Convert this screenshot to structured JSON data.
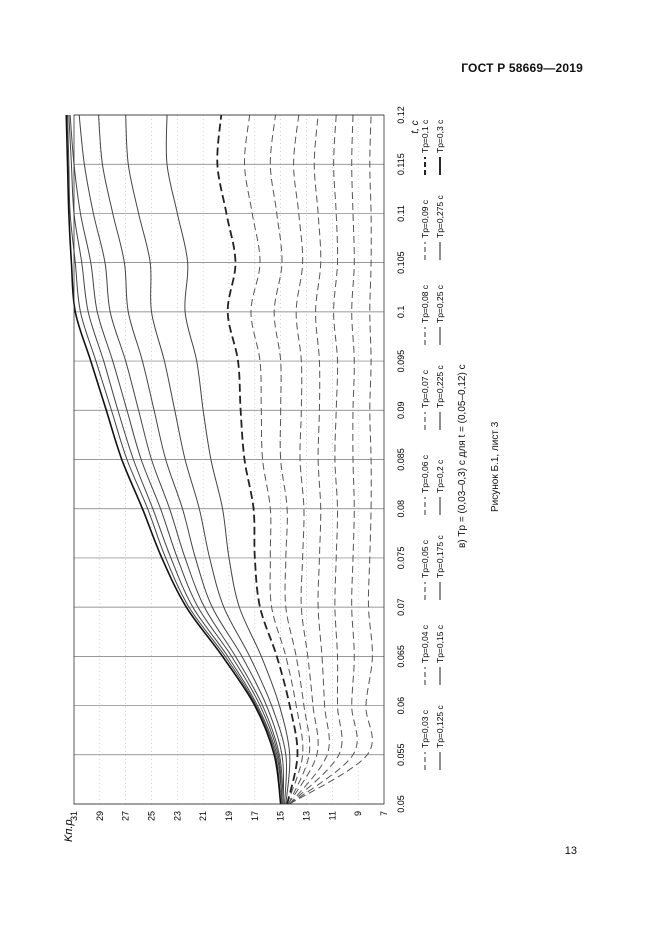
{
  "header": {
    "standard": "ГОСТ Р 58669—2019"
  },
  "page_number": "13",
  "figure": {
    "panel_caption": "в) Tр = (0,03–0,3) с для t = (0,05–0,12) с",
    "caption": "Рисунок Б.1, лист 3"
  },
  "chart_data": {
    "type": "line",
    "title": "",
    "xlabel": "t, с",
    "ylabel": "Kп.р",
    "xlim": [
      0.05,
      0.12
    ],
    "ylim": [
      7,
      31
    ],
    "x_ticks": [
      "0.05",
      "0.055",
      "0.06",
      "0.065",
      "0.07",
      "0.075",
      "0.08",
      "0.085",
      "0.09",
      "0.095",
      "0.1",
      "0.105",
      "0.11",
      "0.115",
      "0.12"
    ],
    "y_ticks": [
      "7",
      "9",
      "11",
      "13",
      "15",
      "17",
      "19",
      "21",
      "23",
      "25",
      "27",
      "29",
      "31"
    ],
    "grid": true,
    "x": [
      0.05,
      0.055,
      0.06,
      0.065,
      0.07,
      0.075,
      0.08,
      0.085,
      0.09,
      0.095,
      0.1,
      0.105,
      0.11,
      0.115,
      0.12
    ],
    "legend": [
      {
        "label": "Tр=0,03 с",
        "style": "dash"
      },
      {
        "label": "Tр=0,04 с",
        "style": "dash"
      },
      {
        "label": "Tр=0,05 с",
        "style": "dash"
      },
      {
        "label": "Tр=0,06 с",
        "style": "dash"
      },
      {
        "label": "Tр=0,07 с",
        "style": "dash"
      },
      {
        "label": "Tр=0,08 с",
        "style": "dash"
      },
      {
        "label": "Tр=0,09 с",
        "style": "dash"
      },
      {
        "label": "Tр=0,1 с",
        "style": "dash-bold"
      },
      {
        "label": "Tр=0,125 с",
        "style": "solid"
      },
      {
        "label": "Tр=0,15 с",
        "style": "solid"
      },
      {
        "label": "Tр=0,175 с",
        "style": "solid"
      },
      {
        "label": "Tр=0,2 с",
        "style": "solid"
      },
      {
        "label": "Tр=0,225 с",
        "style": "solid"
      },
      {
        "label": "Tр=0,25 с",
        "style": "solid"
      },
      {
        "label": "Tр=0,275 с",
        "style": "solid"
      },
      {
        "label": "Tр=0,3 с",
        "style": "solid-bold"
      }
    ],
    "series": [
      {
        "name": "Tр=0,03 с",
        "values": [
          14.3,
          8.3,
          8.4,
          7.9,
          8.2,
          8.1,
          8.0,
          8.0,
          8.1,
          8.0,
          8.1,
          8.0,
          8.0,
          8.1,
          8.0
        ]
      },
      {
        "name": "Tр=0,04 с",
        "values": [
          14.3,
          9.4,
          9.5,
          9.3,
          9.5,
          9.4,
          9.3,
          9.4,
          9.4,
          9.3,
          9.5,
          9.3,
          9.4,
          9.5,
          9.4
        ]
      },
      {
        "name": "Tр=0,05 с",
        "values": [
          14.3,
          10.5,
          10.6,
          10.6,
          10.8,
          10.7,
          10.6,
          10.8,
          10.7,
          10.6,
          10.9,
          10.6,
          10.7,
          10.9,
          10.7
        ]
      },
      {
        "name": "Tр=0,06 с",
        "values": [
          14.3,
          11.4,
          11.6,
          11.8,
          12.1,
          12.0,
          11.9,
          12.1,
          12.0,
          12.0,
          12.3,
          11.9,
          12.1,
          12.4,
          12.1
        ]
      },
      {
        "name": "Tр=0,07 с",
        "values": [
          14.4,
          12.2,
          12.5,
          12.9,
          13.4,
          13.3,
          13.2,
          13.5,
          13.4,
          13.4,
          13.8,
          13.3,
          13.6,
          14.0,
          13.6
        ]
      },
      {
        "name": "Tр=0,08 с",
        "values": [
          14.4,
          12.8,
          13.2,
          13.8,
          14.6,
          14.6,
          14.5,
          15.0,
          15.0,
          15.0,
          15.5,
          14.9,
          15.3,
          15.8,
          15.4
        ]
      },
      {
        "name": "Tр=0,09 с",
        "values": [
          14.5,
          13.3,
          13.8,
          14.6,
          15.7,
          15.8,
          15.8,
          16.4,
          16.5,
          16.6,
          17.3,
          16.6,
          17.2,
          17.8,
          17.4
        ]
      },
      {
        "name": "Tр=0,1 с",
        "values": [
          14.5,
          13.7,
          14.3,
          15.3,
          16.6,
          17.0,
          17.1,
          17.8,
          18.1,
          18.3,
          19.1,
          18.5,
          19.2,
          19.9,
          19.6
        ]
      },
      {
        "name": "Tр=0,125 с",
        "values": [
          14.6,
          14.3,
          15.1,
          16.5,
          18.2,
          19.0,
          19.5,
          20.4,
          21.0,
          21.5,
          22.4,
          22.2,
          23.0,
          23.8,
          23.8
        ]
      },
      {
        "name": "Tр=0,15 с",
        "values": [
          14.7,
          14.6,
          15.7,
          17.4,
          19.4,
          20.5,
          21.3,
          22.4,
          23.2,
          24.0,
          25.0,
          25.1,
          26.0,
          26.8,
          27.0
        ]
      },
      {
        "name": "Tр=0,175 с",
        "values": [
          14.8,
          14.9,
          16.1,
          18.0,
          20.3,
          21.6,
          22.6,
          23.9,
          24.8,
          25.7,
          26.8,
          27.1,
          28.0,
          28.8,
          29.1
        ]
      },
      {
        "name": "Tр=0,2 с",
        "values": [
          14.8,
          15.1,
          16.4,
          18.5,
          20.9,
          22.4,
          23.6,
          25.0,
          26.0,
          27.0,
          28.2,
          28.6,
          29.5,
          30.2,
          30.6
        ]
      },
      {
        "name": "Tр=0,225 с",
        "values": [
          14.9,
          15.2,
          16.6,
          18.8,
          21.4,
          23.0,
          24.3,
          25.8,
          26.9,
          28.0,
          29.2,
          29.7,
          30.5,
          31.0,
          31.3
        ]
      },
      {
        "name": "Tр=0,25 с",
        "values": [
          14.9,
          15.3,
          16.8,
          19.1,
          21.8,
          23.5,
          24.9,
          26.4,
          27.6,
          28.7,
          29.9,
          30.4,
          31.0,
          31.2,
          31.4
        ]
      },
      {
        "name": "Tр=0,275 с",
        "values": [
          15.0,
          15.4,
          16.9,
          19.3,
          22.1,
          23.9,
          25.3,
          26.9,
          28.1,
          29.3,
          30.5,
          30.9,
          31.3,
          31.4,
          31.5
        ]
      },
      {
        "name": "Tр=0,3 с",
        "values": [
          15.0,
          15.5,
          17.0,
          19.5,
          22.3,
          24.2,
          25.7,
          27.3,
          28.5,
          29.7,
          30.9,
          31.2,
          31.4,
          31.5,
          31.6
        ]
      }
    ]
  }
}
